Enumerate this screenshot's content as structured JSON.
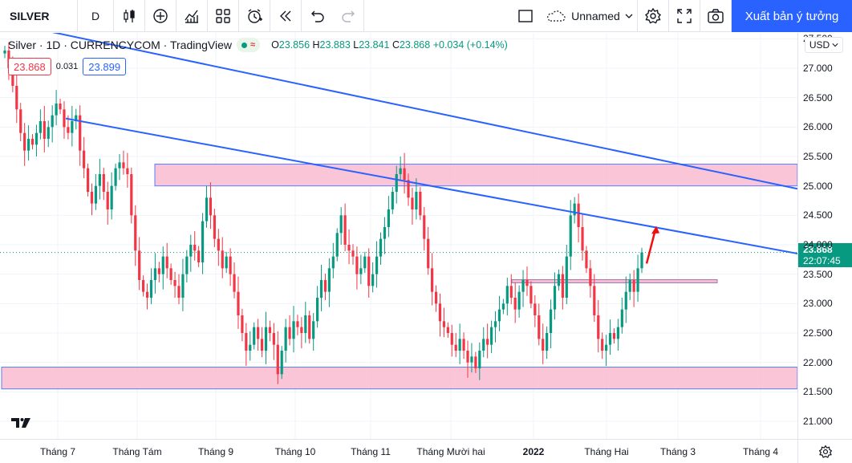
{
  "toolbar": {
    "symbol": "SILVER",
    "interval": "D",
    "layout_name": "Unnamed",
    "publish_label": "Xuất bản ý tưởng",
    "icons": [
      "candles-icon",
      "add-indicator-icon",
      "indicators-icon",
      "templates-icon",
      "alert-icon",
      "replay-icon",
      "undo-icon",
      "redo-icon",
      "layout-icon",
      "cloud-icon",
      "chevron-down-icon",
      "settings-icon",
      "fullscreen-icon",
      "camera-icon"
    ]
  },
  "legend": {
    "title": "Silver · 1D · CURRENCYCOM · TradingView",
    "open_label": "O",
    "open": "23.856",
    "high_label": "H",
    "high": "23.883",
    "low_label": "L",
    "low": "23.841",
    "close_label": "C",
    "close": "23.868",
    "change": "+0.034 (+0.14%)",
    "pill_symbol": "≈"
  },
  "quote": {
    "bid": "23.868",
    "spread": "0.031",
    "ask": "23.899"
  },
  "currency": "USD",
  "price_axis": {
    "labels": [
      "27.500",
      "27.000",
      "26.500",
      "26.000",
      "25.500",
      "25.000",
      "24.500",
      "24.000",
      "23.500",
      "23.000",
      "22.500",
      "22.000",
      "21.500",
      "21.000"
    ],
    "last_price": "23.868",
    "countdown": "22:07:45"
  },
  "time_axis": {
    "labels": [
      "Tháng 7",
      "Tháng Tám",
      "Tháng 9",
      "Tháng 10",
      "Tháng 11",
      "Tháng Mười hai",
      "2022",
      "Tháng Hai",
      "Tháng 3",
      "Tháng 4"
    ]
  },
  "colors": {
    "up": "#089981",
    "down": "#f23645",
    "trendline": "#2962ff",
    "zone": "#f8bbd0",
    "accent": "#2962ff"
  },
  "chart_data": {
    "type": "candlestick",
    "title": "Silver, 1D, CURRENCYCOM",
    "ylim": [
      20.7,
      27.6
    ],
    "candles_close": [
      27.3,
      27.0,
      26.7,
      26.3,
      25.9,
      25.6,
      25.8,
      25.7,
      25.9,
      26.1,
      25.8,
      26.0,
      26.2,
      26.4,
      26.3,
      26.0,
      25.9,
      26.1,
      26.2,
      25.6,
      25.3,
      24.9,
      24.7,
      25.0,
      25.2,
      24.9,
      24.6,
      25.0,
      25.3,
      25.4,
      25.3,
      25.2,
      24.5,
      23.9,
      23.4,
      23.2,
      23.1,
      23.4,
      23.6,
      23.5,
      23.8,
      23.6,
      23.4,
      23.3,
      23.1,
      23.5,
      23.8,
      24.0,
      23.9,
      23.7,
      24.4,
      24.8,
      24.5,
      24.1,
      23.9,
      23.6,
      23.8,
      23.5,
      23.2,
      22.8,
      22.5,
      22.2,
      22.3,
      22.6,
      22.4,
      22.2,
      22.6,
      22.5,
      22.3,
      21.8,
      22.2,
      22.6,
      22.4,
      22.7,
      22.6,
      22.5,
      22.8,
      22.4,
      22.7,
      23.1,
      23.4,
      23.2,
      23.6,
      23.8,
      24.2,
      24.5,
      24.0,
      23.9,
      23.8,
      23.5,
      23.6,
      23.8,
      23.3,
      23.5,
      23.8,
      24.1,
      24.3,
      24.6,
      24.9,
      25.2,
      25.3,
      25.1,
      24.8,
      24.6,
      24.9,
      24.5,
      24.1,
      23.6,
      23.2,
      23.0,
      22.7,
      22.6,
      22.5,
      22.3,
      22.2,
      22.4,
      22.2,
      22.0,
      22.1,
      21.9,
      22.2,
      22.4,
      22.3,
      22.6,
      22.7,
      22.9,
      23.0,
      23.3,
      23.1,
      22.9,
      23.2,
      23.4,
      23.3,
      23.0,
      22.8,
      22.4,
      22.2,
      22.5,
      22.9,
      23.3,
      23.5,
      23.1,
      23.8,
      24.5,
      24.7,
      24.3,
      23.9,
      23.6,
      23.3,
      22.8,
      22.4,
      22.2,
      22.3,
      22.5,
      22.4,
      22.6,
      22.9,
      23.2,
      23.4,
      23.2,
      23.6,
      23.868
    ],
    "annotations": {
      "resistance_zone": [
        25.0,
        25.37
      ],
      "support_zone": [
        21.55,
        21.92
      ],
      "neckline": 23.38,
      "trendline_upper": {
        "from_price": 27.8,
        "to_price": 24.95
      },
      "trendline_lower": {
        "from_price": 26.8,
        "to_price": 23.85
      },
      "arrow_direction": "up"
    }
  }
}
